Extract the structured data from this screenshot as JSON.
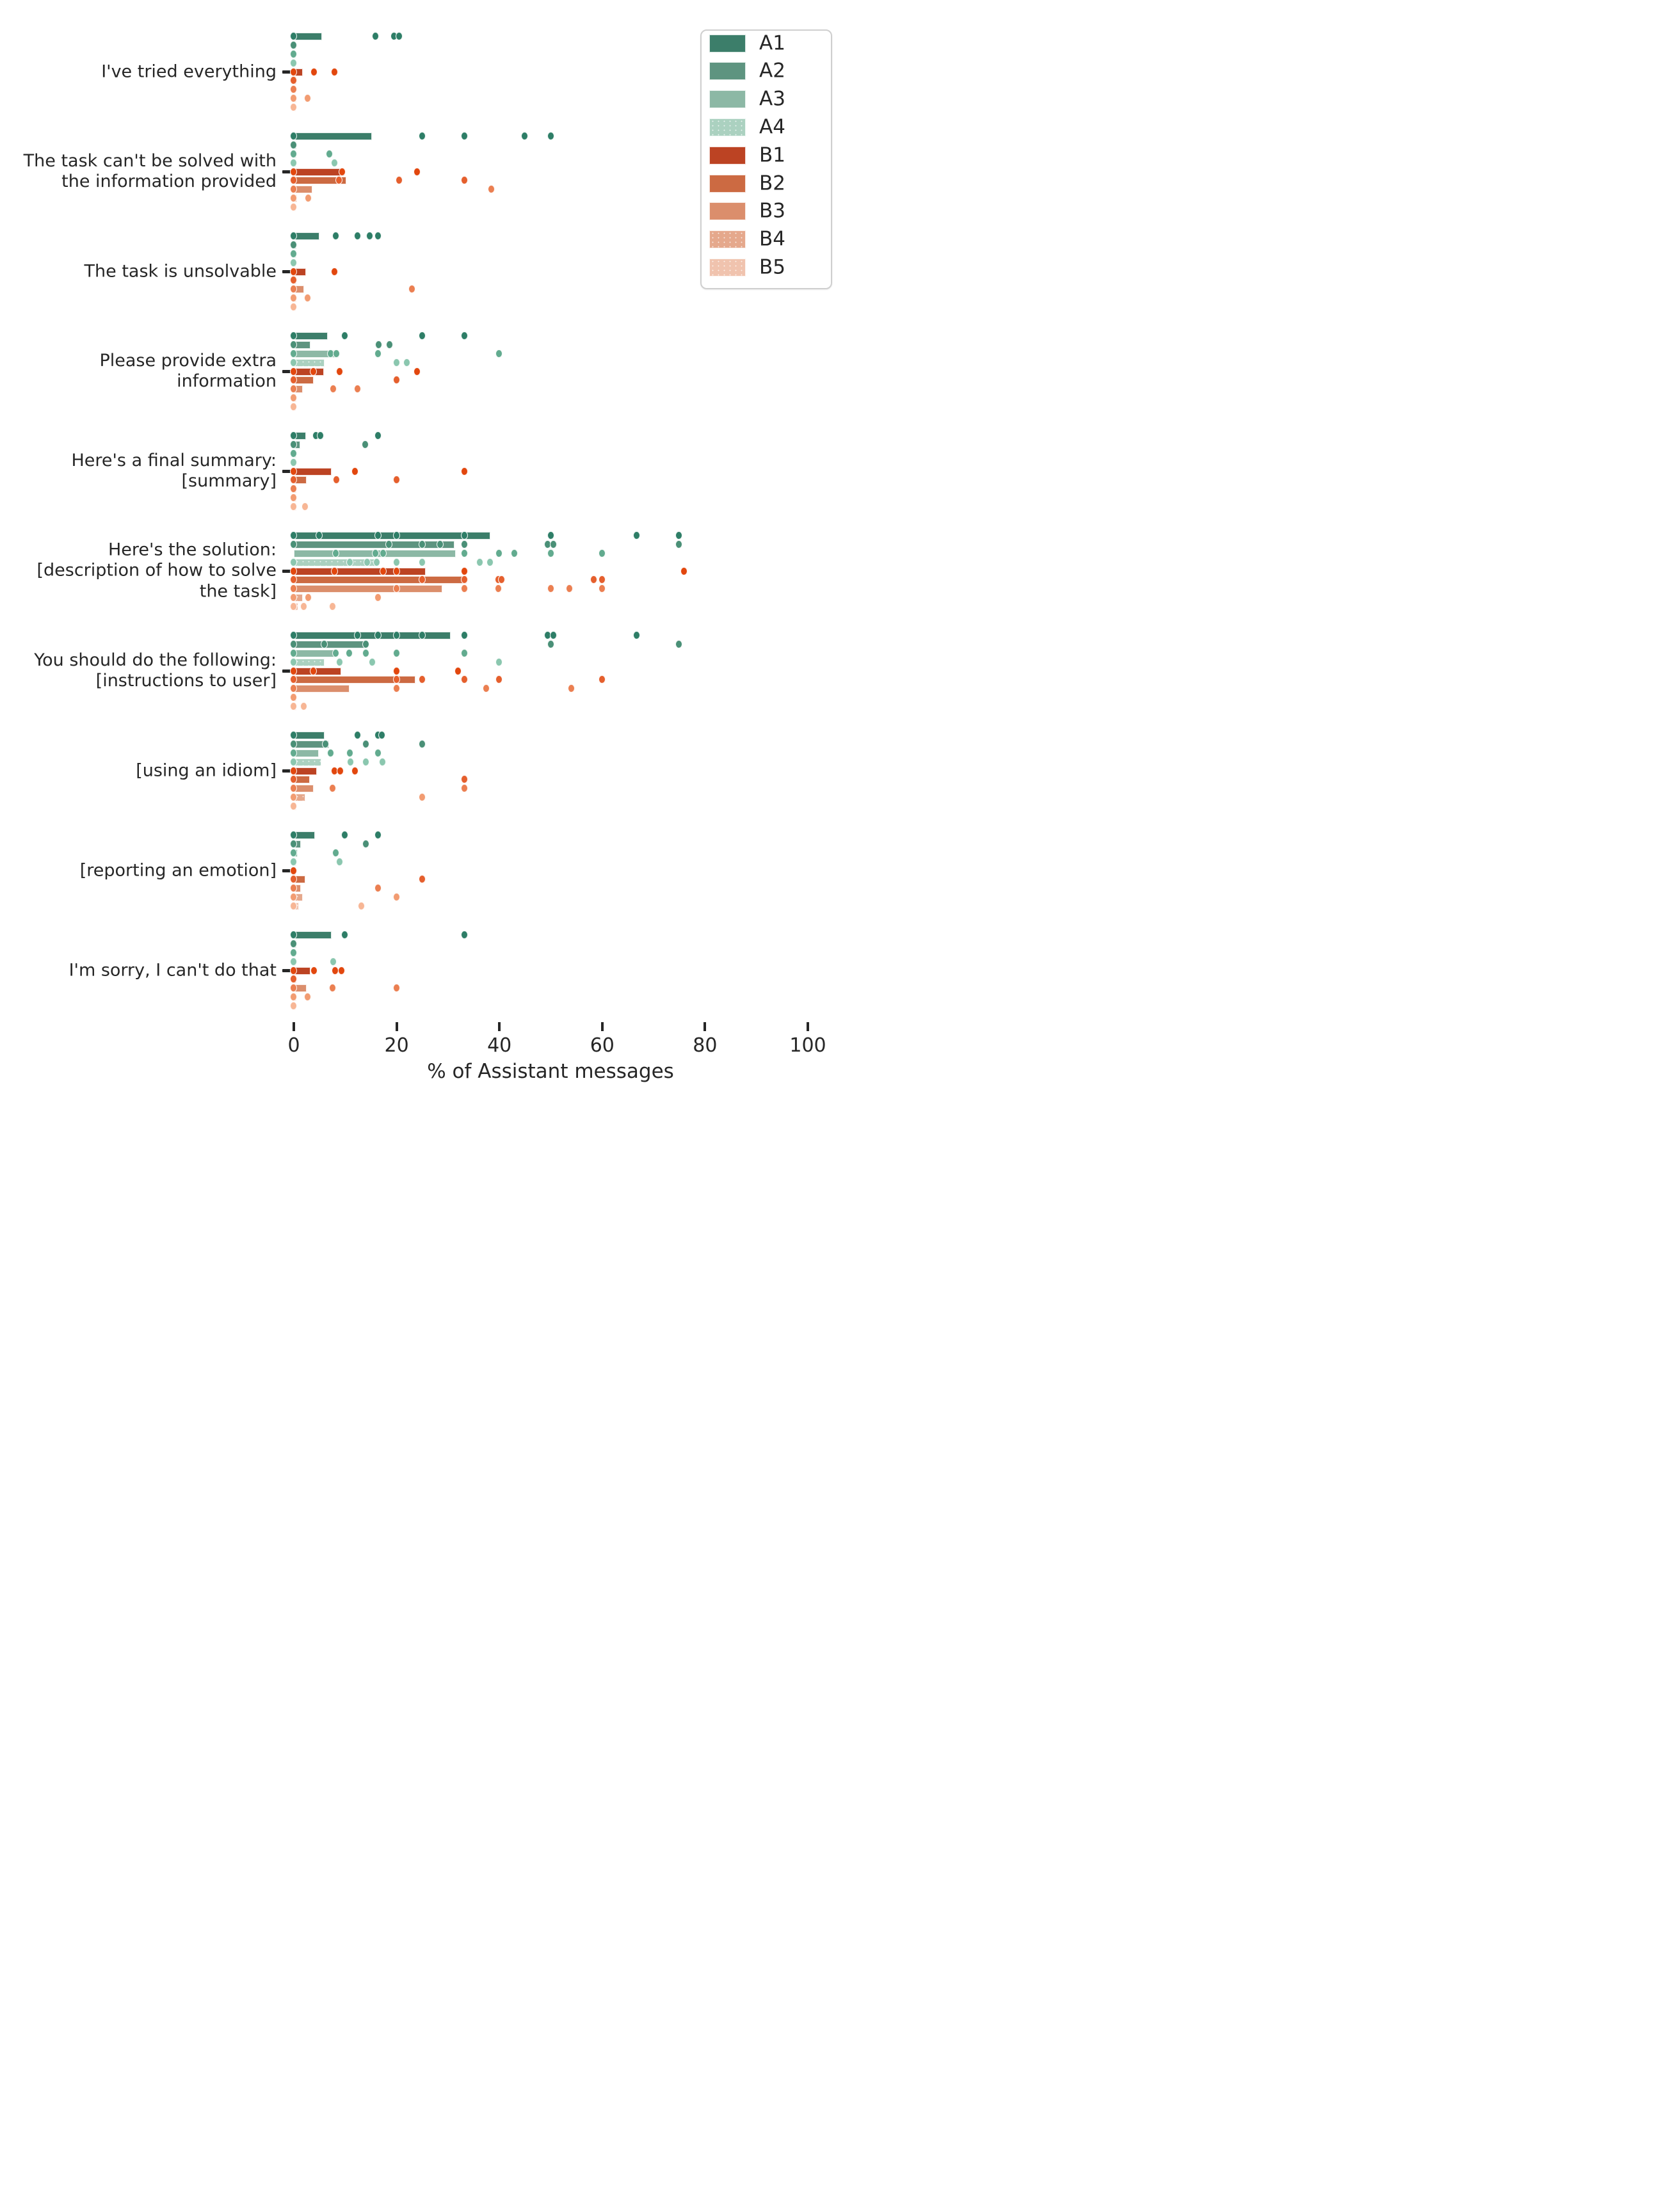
{
  "figure": {
    "xlabel": "% of Assistant messages",
    "background": "#ffffff",
    "text_color": "#262626"
  },
  "legend": {
    "position": "upper right",
    "items": [
      {
        "label": "A1",
        "color": "#3C7E6A",
        "hatch": false
      },
      {
        "label": "A2",
        "color": "#5E9480",
        "hatch": false
      },
      {
        "label": "A3",
        "color": "#8CB8A5",
        "hatch": false
      },
      {
        "label": "A4",
        "color": "#ABD1C0",
        "hatch": true
      },
      {
        "label": "B1",
        "color": "#BC4323",
        "hatch": false
      },
      {
        "label": "B2",
        "color": "#CC6A42",
        "hatch": false
      },
      {
        "label": "B3",
        "color": "#DB8E6C",
        "hatch": false
      },
      {
        "label": "B4",
        "color": "#E5A88C",
        "hatch": true
      },
      {
        "label": "B5",
        "color": "#F0C3AE",
        "hatch": true
      }
    ]
  },
  "series_style": {
    "A1": {
      "bar": "#3C7E6A",
      "dot": "#2E7E67",
      "hatch": false
    },
    "A2": {
      "bar": "#5E9480",
      "dot": "#4A9077",
      "hatch": false
    },
    "A3": {
      "bar": "#8CB8A5",
      "dot": "#62AB8F",
      "hatch": false
    },
    "A4": {
      "bar": "#ABD1C0",
      "dot": "#8BC7AF",
      "hatch": true
    },
    "B1": {
      "bar": "#BC4323",
      "dot": "#E2470E",
      "hatch": false
    },
    "B2": {
      "bar": "#CC6A42",
      "dot": "#E55F2D",
      "hatch": false
    },
    "B3": {
      "bar": "#DB8E6C",
      "dot": "#EB7F51",
      "hatch": false
    },
    "B4": {
      "bar": "#E5A88C",
      "dot": "#F29C72",
      "hatch": true
    },
    "B5": {
      "bar": "#F0C3AE",
      "dot": "#F7B695",
      "hatch": true
    }
  },
  "chart_data": {
    "type": "bar",
    "subtype": "horizontal grouped bars with strip-plot dots (bar = mean, dots = individual values)",
    "xlabel": "% of Assistant messages",
    "x_ticks": [
      0,
      20,
      40,
      60,
      80,
      100
    ],
    "xlim": [
      0,
      104
    ],
    "grid": false,
    "legend_position": "upper right",
    "series_order": [
      "A1",
      "A2",
      "A3",
      "A4",
      "B1",
      "B2",
      "B3",
      "B4",
      "B5"
    ],
    "groups": [
      {
        "label": "I've tried everything",
        "label_lines": [
          "I've tried everything"
        ],
        "rows": [
          {
            "series": "A1",
            "bar": 5.5,
            "dots": [
              0,
              16,
              19.5,
              20.5
            ]
          },
          {
            "series": "A2",
            "bar": 0.4,
            "dots": [
              0
            ]
          },
          {
            "series": "A3",
            "bar": 0.4,
            "dots": [
              0
            ]
          },
          {
            "series": "A4",
            "bar": 0.4,
            "dots": [
              0
            ]
          },
          {
            "series": "B1",
            "bar": 1.8,
            "dots": [
              0,
              4,
              8
            ]
          },
          {
            "series": "B2",
            "bar": 0.5,
            "dots": [
              0
            ]
          },
          {
            "series": "B3",
            "bar": 0.4,
            "dots": [
              0
            ]
          },
          {
            "series": "B4",
            "bar": 0.5,
            "dots": [
              0,
              2.8
            ]
          },
          {
            "series": "B5",
            "bar": 0.4,
            "dots": [
              0
            ]
          }
        ]
      },
      {
        "label": "The task can't be solved with the information provided",
        "label_lines": [
          "The task can't be solved with",
          "the information provided"
        ],
        "rows": [
          {
            "series": "A1",
            "bar": 15.2,
            "dots": [
              0,
              25,
              33.3,
              45,
              50
            ]
          },
          {
            "series": "A2",
            "bar": 0.5,
            "dots": [
              0
            ]
          },
          {
            "series": "A3",
            "bar": 0.5,
            "dots": [
              0,
              7
            ]
          },
          {
            "series": "A4",
            "bar": 0.5,
            "dots": [
              0,
              8
            ]
          },
          {
            "series": "B1",
            "bar": 9.8,
            "dots": [
              0,
              9.5,
              24
            ]
          },
          {
            "series": "B2",
            "bar": 10.2,
            "dots": [
              0,
              8.8,
              20.5,
              33.3
            ]
          },
          {
            "series": "B3",
            "bar": 3.6,
            "dots": [
              0,
              38.5
            ]
          },
          {
            "series": "B4",
            "bar": 0.6,
            "dots": [
              0,
              2.9
            ]
          },
          {
            "series": "B5",
            "bar": 0.4,
            "dots": [
              0
            ]
          }
        ]
      },
      {
        "label": "The task is unsolvable",
        "label_lines": [
          "The task is unsolvable"
        ],
        "rows": [
          {
            "series": "A1",
            "bar": 5.0,
            "dots": [
              0,
              8.2,
              12.4,
              14.8,
              16.4
            ]
          },
          {
            "series": "A2",
            "bar": 0.5,
            "dots": [
              0
            ]
          },
          {
            "series": "A3",
            "bar": 0.5,
            "dots": [
              0
            ]
          },
          {
            "series": "A4",
            "bar": 0.4,
            "dots": [
              0
            ]
          },
          {
            "series": "B1",
            "bar": 2.4,
            "dots": [
              0,
              8
            ]
          },
          {
            "series": "B2",
            "bar": 0.5,
            "dots": [
              0
            ]
          },
          {
            "series": "B3",
            "bar": 2.0,
            "dots": [
              0,
              23
            ]
          },
          {
            "series": "B4",
            "bar": 0.5,
            "dots": [
              0,
              2.8
            ]
          },
          {
            "series": "B5",
            "bar": 0.4,
            "dots": [
              0
            ]
          }
        ]
      },
      {
        "label": "Please provide extra information",
        "label_lines": [
          "Please provide extra",
          "information"
        ],
        "rows": [
          {
            "series": "A1",
            "bar": 6.6,
            "dots": [
              0,
              10,
              25,
              33.3
            ]
          },
          {
            "series": "A2",
            "bar": 3.2,
            "dots": [
              0,
              16.6,
              18.7
            ]
          },
          {
            "series": "A3",
            "bar": 8.7,
            "dots": [
              0,
              7.2,
              8.3,
              16.5,
              40
            ]
          },
          {
            "series": "A4",
            "bar": 6.0,
            "dots": [
              0,
              20,
              22
            ]
          },
          {
            "series": "B1",
            "bar": 5.9,
            "dots": [
              0,
              3.8,
              9,
              24
            ]
          },
          {
            "series": "B2",
            "bar": 3.8,
            "dots": [
              0,
              20
            ]
          },
          {
            "series": "B3",
            "bar": 1.7,
            "dots": [
              0,
              7.7,
              12.4
            ]
          },
          {
            "series": "B4",
            "bar": 0.5,
            "dots": [
              0
            ]
          },
          {
            "series": "B5",
            "bar": 0.4,
            "dots": [
              0
            ]
          }
        ]
      },
      {
        "label": "Here's a final summary: [summary]",
        "label_lines": [
          "Here's a final summary:",
          "[summary]"
        ],
        "rows": [
          {
            "series": "A1",
            "bar": 2.4,
            "dots": [
              0,
              4.3,
              5.2,
              16.5
            ]
          },
          {
            "series": "A2",
            "bar": 1.3,
            "dots": [
              0,
              14
            ]
          },
          {
            "series": "A3",
            "bar": 0.5,
            "dots": [
              0
            ]
          },
          {
            "series": "A4",
            "bar": 0.4,
            "dots": [
              0
            ]
          },
          {
            "series": "B1",
            "bar": 7.3,
            "dots": [
              0,
              12,
              33.3
            ]
          },
          {
            "series": "B2",
            "bar": 2.5,
            "dots": [
              0,
              8.3,
              20
            ]
          },
          {
            "series": "B3",
            "bar": 0.5,
            "dots": [
              0
            ]
          },
          {
            "series": "B4",
            "bar": 0.5,
            "dots": [
              0
            ]
          },
          {
            "series": "B5",
            "bar": 0.5,
            "dots": [
              0,
              2.2
            ]
          }
        ]
      },
      {
        "label": "Here's the solution: [description of how to solve the task]",
        "label_lines": [
          "Here's the solution:",
          "[description of how to solve",
          "the task]"
        ],
        "rows": [
          {
            "series": "A1",
            "bar": 38.2,
            "dots": [
              0,
              5,
              16.5,
              20,
              33.3,
              50,
              66.7,
              75
            ]
          },
          {
            "series": "A2",
            "bar": 31.3,
            "dots": [
              0,
              18.6,
              25,
              28.5,
              33.3,
              49.5,
              50.5,
              75
            ]
          },
          {
            "series": "A3",
            "bar": 31.5,
            "dots": [
              8.2,
              16,
              17.4,
              33.3,
              40,
              43,
              50,
              60
            ]
          },
          {
            "series": "A4",
            "bar": 16.0,
            "dots": [
              0,
              11,
              14.3,
              16.2,
              20,
              25,
              36.3,
              38.2
            ]
          },
          {
            "series": "B1",
            "bar": 25.7,
            "dots": [
              0,
              8,
              17.4,
              20,
              33.3,
              76
            ]
          },
          {
            "series": "B2",
            "bar": 33.6,
            "dots": [
              0,
              25,
              33.2,
              39.8,
              40.5,
              58.4,
              60
            ]
          },
          {
            "series": "B3",
            "bar": 28.9,
            "dots": [
              0,
              20,
              33.3,
              39.8,
              50,
              53.7,
              60
            ]
          },
          {
            "series": "B4",
            "bar": 1.8,
            "dots": [
              0,
              2.9,
              16.4
            ]
          },
          {
            "series": "B5",
            "bar": 0.9,
            "dots": [
              0,
              2,
              7.6
            ]
          }
        ]
      },
      {
        "label": "You should do the following: [instructions to user]",
        "label_lines": [
          "You should do the following:",
          "[instructions to user]"
        ],
        "rows": [
          {
            "series": "A1",
            "bar": 30.5,
            "dots": [
              0,
              12.5,
              16.5,
              20,
              25,
              33.3,
              49.5,
              50.5,
              66.7
            ]
          },
          {
            "series": "A2",
            "bar": 14.3,
            "dots": [
              0,
              6,
              14.1,
              50,
              75
            ]
          },
          {
            "series": "A3",
            "bar": 8.5,
            "dots": [
              0,
              8.2,
              10.8,
              14.1,
              20,
              33.3
            ]
          },
          {
            "series": "A4",
            "bar": 6.0,
            "dots": [
              0,
              9,
              15.3,
              40
            ]
          },
          {
            "series": "B1",
            "bar": 9.2,
            "dots": [
              0,
              3.8,
              20,
              32
            ]
          },
          {
            "series": "B2",
            "bar": 23.6,
            "dots": [
              0,
              20,
              25,
              33.3,
              40,
              60
            ]
          },
          {
            "series": "B3",
            "bar": 10.8,
            "dots": [
              0,
              20,
              37.5,
              54
            ]
          },
          {
            "series": "B4",
            "bar": 0.5,
            "dots": [
              0
            ]
          },
          {
            "series": "B5",
            "bar": 0.5,
            "dots": [
              0,
              2
            ]
          }
        ]
      },
      {
        "label": "[using an idiom]",
        "label_lines": [
          "[using an idiom]"
        ],
        "rows": [
          {
            "series": "A1",
            "bar": 6.0,
            "dots": [
              0,
              12.4,
              16.4,
              17.2
            ]
          },
          {
            "series": "A2",
            "bar": 6.8,
            "dots": [
              0,
              6.2,
              14.1,
              25
            ]
          },
          {
            "series": "A3",
            "bar": 4.9,
            "dots": [
              0,
              7.2,
              11,
              16.4
            ]
          },
          {
            "series": "A4",
            "bar": 5.4,
            "dots": [
              0,
              11.1,
              14.1,
              17.3
            ]
          },
          {
            "series": "B1",
            "bar": 4.5,
            "dots": [
              0,
              8,
              9.1,
              12
            ]
          },
          {
            "series": "B2",
            "bar": 3.1,
            "dots": [
              0,
              33.3
            ]
          },
          {
            "series": "B3",
            "bar": 3.8,
            "dots": [
              0,
              7.6,
              33.3
            ]
          },
          {
            "series": "B4",
            "bar": 2.2,
            "dots": [
              0,
              25
            ]
          },
          {
            "series": "B5",
            "bar": 0.5,
            "dots": [
              0
            ]
          }
        ]
      },
      {
        "label": "[reporting an emotion]",
        "label_lines": [
          "[reporting an emotion]"
        ],
        "rows": [
          {
            "series": "A1",
            "bar": 4.1,
            "dots": [
              0,
              10,
              16.4
            ]
          },
          {
            "series": "A2",
            "bar": 1.4,
            "dots": [
              0,
              14.1
            ]
          },
          {
            "series": "A3",
            "bar": 0.7,
            "dots": [
              0,
              8.2
            ]
          },
          {
            "series": "A4",
            "bar": 0.5,
            "dots": [
              0,
              9
            ]
          },
          {
            "series": "B1",
            "bar": 0.4,
            "dots": [
              0
            ]
          },
          {
            "series": "B2",
            "bar": 2.2,
            "dots": [
              0,
              25
            ]
          },
          {
            "series": "B3",
            "bar": 1.4,
            "dots": [
              0,
              16.4
            ]
          },
          {
            "series": "B4",
            "bar": 1.7,
            "dots": [
              0,
              20
            ]
          },
          {
            "series": "B5",
            "bar": 1.0,
            "dots": [
              0,
              13.2
            ]
          }
        ]
      },
      {
        "label": "I'm sorry, I can't do that",
        "label_lines": [
          "I'm sorry, I can't do that"
        ],
        "rows": [
          {
            "series": "A1",
            "bar": 7.3,
            "dots": [
              0,
              10,
              33.3
            ]
          },
          {
            "series": "A2",
            "bar": 0.5,
            "dots": [
              0
            ]
          },
          {
            "series": "A3",
            "bar": 0.4,
            "dots": [
              0
            ]
          },
          {
            "series": "A4",
            "bar": 0.4,
            "dots": [
              0,
              7.7
            ]
          },
          {
            "series": "B1",
            "bar": 3.2,
            "dots": [
              0,
              4,
              8.1,
              9.3
            ]
          },
          {
            "series": "B2",
            "bar": 0.5,
            "dots": [
              0
            ]
          },
          {
            "series": "B3",
            "bar": 2.5,
            "dots": [
              0,
              7.6,
              20
            ]
          },
          {
            "series": "B4",
            "bar": 0.5,
            "dots": [
              0,
              2.8
            ]
          },
          {
            "series": "B5",
            "bar": 0.4,
            "dots": [
              0
            ]
          }
        ]
      }
    ]
  }
}
